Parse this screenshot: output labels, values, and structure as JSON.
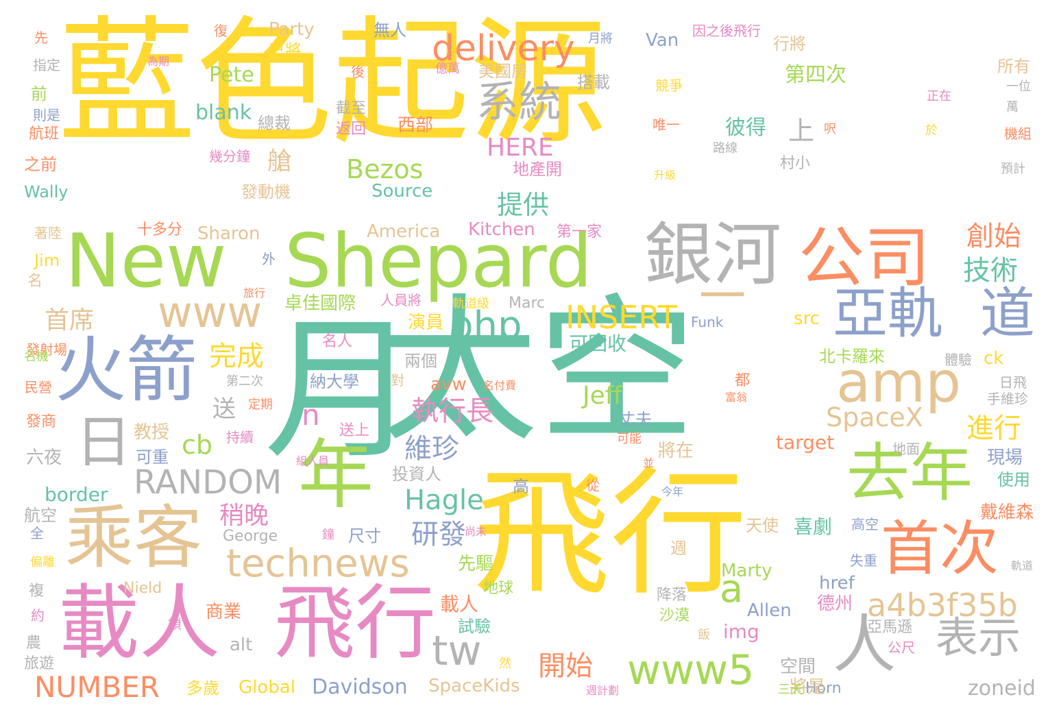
{
  "words": [
    {
      "text": "藍色起源",
      "color": "yellow"
    },
    {
      "text": "太空",
      "color": "teal"
    },
    {
      "text": "月",
      "color": "teal"
    },
    {
      "text": "飛行",
      "color": "yellow"
    },
    {
      "text": "New",
      "color": "green"
    },
    {
      "text": "Shepard",
      "color": "green"
    },
    {
      "text": "銀河",
      "color": "gray"
    },
    {
      "text": "公司",
      "color": "coral"
    },
    {
      "text": "一",
      "color": "tan"
    },
    {
      "text": "火箭",
      "color": "blue"
    },
    {
      "text": "亞軌",
      "color": "blue"
    },
    {
      "text": "道",
      "color": "blue"
    },
    {
      "text": "www",
      "color": "tan"
    },
    {
      "text": "amp",
      "color": "tan"
    },
    {
      "text": "日",
      "color": "gray"
    },
    {
      "text": "年",
      "color": "green"
    },
    {
      "text": "去年",
      "color": "green"
    },
    {
      "text": "乘客",
      "color": "tan"
    },
    {
      "text": "technews",
      "color": "tan"
    },
    {
      "text": "首次",
      "color": "coral"
    },
    {
      "text": "載人",
      "color": "pink"
    },
    {
      "text": "飛行",
      "color": "pink"
    },
    {
      "text": "人",
      "color": "gray"
    },
    {
      "text": "表示",
      "color": "gray"
    },
    {
      "text": "tw",
      "color": "gray"
    },
    {
      "text": "www5",
      "color": "green"
    },
    {
      "text": "a4b3f35b",
      "color": "tan"
    },
    {
      "text": "NUMBER",
      "color": "coral"
    },
    {
      "text": "RANDOM",
      "color": "gray"
    },
    {
      "text": "delivery",
      "color": "coral"
    },
    {
      "text": "系統",
      "color": "gray"
    },
    {
      "text": "php",
      "color": "teal"
    },
    {
      "text": "INSERT",
      "color": "yellow"
    },
    {
      "text": "a",
      "color": "green"
    },
    {
      "text": "n",
      "color": "pink"
    },
    {
      "text": "cb",
      "color": "green"
    },
    {
      "text": "Jeff",
      "color": "green"
    },
    {
      "text": "SpaceX",
      "color": "tan"
    },
    {
      "text": "Hagle",
      "color": "teal"
    },
    {
      "text": "Bezos",
      "color": "green"
    },
    {
      "text": "HERE",
      "color": "pink"
    },
    {
      "text": "完成",
      "color": "yellow"
    },
    {
      "text": "首席",
      "color": "tan"
    },
    {
      "text": "執行長",
      "color": "pink"
    },
    {
      "text": "維珍",
      "color": "blue"
    },
    {
      "text": "進行",
      "color": "yellow"
    },
    {
      "text": "技術",
      "color": "teal"
    },
    {
      "text": "創始",
      "color": "coral"
    },
    {
      "text": "提供",
      "color": "teal"
    },
    {
      "text": "研發",
      "color": "blue"
    },
    {
      "text": "稍晚",
      "color": "pink"
    },
    {
      "text": "開始",
      "color": "coral"
    },
    {
      "text": "艙",
      "color": "tan"
    },
    {
      "text": "送",
      "color": "gray"
    },
    {
      "text": "上",
      "color": "gray"
    },
    {
      "text": "Pete",
      "color": "green"
    },
    {
      "text": "blank",
      "color": "teal"
    },
    {
      "text": "border",
      "color": "teal"
    },
    {
      "text": "Davidson",
      "color": "blue"
    },
    {
      "text": "zoneid",
      "color": "gray"
    },
    {
      "text": "Global",
      "color": "yellow"
    },
    {
      "text": "SpaceKids",
      "color": "tan"
    },
    {
      "text": "Source",
      "color": "teal"
    },
    {
      "text": "Party",
      "color": "tan"
    },
    {
      "text": "Van",
      "color": "blue"
    },
    {
      "text": "Wally",
      "color": "teal"
    },
    {
      "text": "America",
      "color": "tan"
    },
    {
      "text": "Kitchen",
      "color": "pink"
    },
    {
      "text": "Sharon",
      "color": "tan"
    },
    {
      "text": "Jim",
      "color": "yellow"
    },
    {
      "text": "George",
      "color": "gray"
    },
    {
      "text": "Nield",
      "color": "tan"
    },
    {
      "text": "Marc",
      "color": "gray"
    },
    {
      "text": "Funk",
      "color": "blue"
    },
    {
      "text": "Marty",
      "color": "green"
    },
    {
      "text": "Allen",
      "color": "blue"
    },
    {
      "text": "Horn",
      "color": "blue"
    },
    {
      "text": "alt",
      "color": "gray"
    },
    {
      "text": "img",
      "color": "pink"
    },
    {
      "text": "href",
      "color": "blue"
    },
    {
      "text": "src",
      "color": "yellow"
    },
    {
      "text": "target",
      "color": "coral"
    },
    {
      "text": "avw",
      "color": "coral"
    },
    {
      "text": "ck",
      "color": "yellow"
    },
    {
      "text": "彼得",
      "color": "teal"
    },
    {
      "text": "第四次",
      "color": "green"
    },
    {
      "text": "卓佳國際",
      "color": "green"
    },
    {
      "text": "演員",
      "color": "yellow"
    },
    {
      "text": "可回收",
      "color": "teal"
    },
    {
      "text": "北卡羅來",
      "color": "green"
    },
    {
      "text": "戴維森",
      "color": "coral"
    },
    {
      "text": "現場",
      "color": "blue"
    },
    {
      "text": "使用",
      "color": "teal"
    },
    {
      "text": "丈夫",
      "color": "blue"
    },
    {
      "text": "將在",
      "color": "tan"
    },
    {
      "text": "投資人",
      "color": "gray"
    },
    {
      "text": "教授",
      "color": "tan"
    },
    {
      "text": "六夜",
      "color": "gray"
    },
    {
      "text": "可重",
      "color": "blue"
    },
    {
      "text": "航空",
      "color": "gray"
    },
    {
      "text": "天使",
      "color": "tan"
    },
    {
      "text": "喜劇",
      "color": "teal"
    },
    {
      "text": "尺寸",
      "color": "blue"
    },
    {
      "text": "先驅",
      "color": "green"
    },
    {
      "text": "地球",
      "color": "green"
    },
    {
      "text": "載人",
      "color": "coral"
    },
    {
      "text": "試驗",
      "color": "teal"
    },
    {
      "text": "商業",
      "color": "coral"
    },
    {
      "text": "多歲",
      "color": "yellow"
    },
    {
      "text": "德州",
      "color": "pink"
    },
    {
      "text": "空間",
      "color": "gray"
    },
    {
      "text": "將是",
      "color": "tan"
    },
    {
      "text": "亞馬遜",
      "color": "gray"
    },
    {
      "text": "公尺",
      "color": "pink"
    },
    {
      "text": "降落",
      "color": "gray"
    },
    {
      "text": "沙漠",
      "color": "green"
    },
    {
      "text": "總裁",
      "color": "gray"
    },
    {
      "text": "截至",
      "color": "gray"
    },
    {
      "text": "返回",
      "color": "pink"
    },
    {
      "text": "西部",
      "color": "coral"
    },
    {
      "text": "搭載",
      "color": "gray"
    },
    {
      "text": "美國房",
      "color": "tan"
    },
    {
      "text": "地產開",
      "color": "pink"
    },
    {
      "text": "發動機",
      "color": "tan"
    },
    {
      "text": "十多分",
      "color": "coral"
    },
    {
      "text": "第一家",
      "color": "pink"
    },
    {
      "text": "名人",
      "color": "pink"
    },
    {
      "text": "兩個",
      "color": "gray"
    },
    {
      "text": "納大學",
      "color": "blue"
    },
    {
      "text": "無人",
      "color": "blue"
    },
    {
      "text": "已將",
      "color": "yellow"
    },
    {
      "text": "行將",
      "color": "tan"
    },
    {
      "text": "所有",
      "color": "tan"
    },
    {
      "text": "前",
      "color": "green"
    },
    {
      "text": "之前",
      "color": "coral"
    },
    {
      "text": "指定",
      "color": "gray"
    },
    {
      "text": "航班",
      "color": "coral"
    },
    {
      "text": "則是",
      "color": "blue"
    },
    {
      "text": "著陸",
      "color": "tan"
    },
    {
      "text": "名",
      "color": "tan"
    },
    {
      "text": "發射場",
      "color": "coral"
    },
    {
      "text": "名機",
      "color": "green"
    },
    {
      "text": "民營",
      "color": "coral"
    },
    {
      "text": "發商",
      "color": "coral"
    },
    {
      "text": "全",
      "color": "blue"
    },
    {
      "text": "偏離",
      "color": "yellow"
    },
    {
      "text": "複",
      "color": "gray"
    },
    {
      "text": "約",
      "color": "pink"
    },
    {
      "text": "農",
      "color": "gray"
    },
    {
      "text": "旅遊",
      "color": "gray"
    },
    {
      "text": "先",
      "color": "coral"
    },
    {
      "text": "復",
      "color": "coral"
    },
    {
      "text": "為期",
      "color": "pink"
    },
    {
      "text": "億萬",
      "color": "pink"
    },
    {
      "text": "後",
      "color": "coral"
    },
    {
      "text": "月將",
      "color": "blue"
    },
    {
      "text": "因之後飛行",
      "color": "pink"
    },
    {
      "text": "競爭",
      "color": "yellow"
    },
    {
      "text": "唯一",
      "color": "coral"
    },
    {
      "text": "路線",
      "color": "gray"
    },
    {
      "text": "升級",
      "color": "yellow"
    },
    {
      "text": "村小",
      "color": "gray"
    },
    {
      "text": "幾分鐘",
      "color": "pink"
    },
    {
      "text": "正在",
      "color": "pink"
    },
    {
      "text": "呎",
      "color": "coral"
    },
    {
      "text": "於",
      "color": "yellow"
    },
    {
      "text": "一位",
      "color": "gray"
    },
    {
      "text": "萬",
      "color": "gray"
    },
    {
      "text": "機組",
      "color": "coral"
    },
    {
      "text": "預計",
      "color": "gray"
    },
    {
      "text": "外",
      "color": "blue"
    },
    {
      "text": "旅行",
      "color": "coral"
    },
    {
      "text": "人員將",
      "color": "pink"
    },
    {
      "text": "軌道級",
      "color": "yellow"
    },
    {
      "text": "第二次",
      "color": "gray"
    },
    {
      "text": "定期",
      "color": "coral"
    },
    {
      "text": "對",
      "color": "tan"
    },
    {
      "text": "都",
      "color": "coral"
    },
    {
      "text": "富翁",
      "color": "coral"
    },
    {
      "text": "名付費",
      "color": "coral"
    },
    {
      "text": "送上",
      "color": "pink"
    },
    {
      "text": "持續",
      "color": "pink"
    },
    {
      "text": "可能",
      "color": "coral"
    },
    {
      "text": "體驗",
      "color": "gray"
    },
    {
      "text": "日飛",
      "color": "gray"
    },
    {
      "text": "手維珍",
      "color": "gray"
    },
    {
      "text": "地面",
      "color": "gray"
    },
    {
      "text": "組人員",
      "color": "pink"
    },
    {
      "text": "並",
      "color": "coral"
    },
    {
      "text": "高",
      "color": "blue"
    },
    {
      "text": "從",
      "color": "coral"
    },
    {
      "text": "今年",
      "color": "blue"
    },
    {
      "text": "鐘",
      "color": "pink"
    },
    {
      "text": "尚未",
      "color": "pink"
    },
    {
      "text": "高空",
      "color": "blue"
    },
    {
      "text": "週",
      "color": "tan"
    },
    {
      "text": "失重",
      "color": "blue"
    },
    {
      "text": "軌道",
      "color": "gray"
    },
    {
      "text": "飯",
      "color": "tan"
    },
    {
      "text": "鎖",
      "color": "pink"
    },
    {
      "text": "然",
      "color": "yellow"
    },
    {
      "text": "三天",
      "color": "green"
    },
    {
      "text": "週計劃",
      "color": "pink"
    }
  ]
}
